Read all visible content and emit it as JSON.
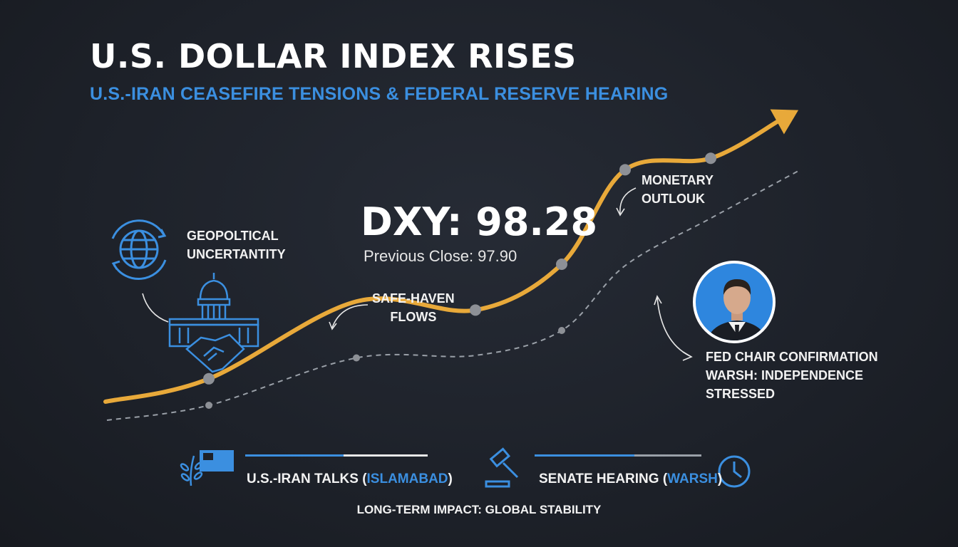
{
  "header": {
    "title": "U.S. DOLLAR INDEX RISES",
    "subtitle": "U.S.-IRAN CEASEFIRE TENSIONS & FEDERAL RESERVE HEARING"
  },
  "readout": {
    "value": "DXY: 98.28",
    "previous": "Previous Close: 97.90"
  },
  "annotations": {
    "geopolitical": [
      "GEOPOLTICAL",
      "UNCERTANTITY"
    ],
    "safe_haven": [
      "SAFE-HAVEN",
      "FLOWS"
    ],
    "monetary": [
      "MONETARY",
      "OUTLOUK"
    ],
    "fed_chair": [
      "FED CHAIR CONFIRMATION",
      "WARSH: INDEPENDENCE",
      "STRESSED"
    ]
  },
  "bottom": {
    "talks_prefix": "U.S.-IRAN TALKS (",
    "talks_highlight": "ISLAMABAD",
    "talks_suffix": ")",
    "hearing_prefix": "SENATE HEARING (",
    "hearing_highlight": "WARSH",
    "hearing_suffix": ")",
    "footer": "LONG-TERM IMPACT: GLOBAL STABILITY"
  },
  "icons": {
    "globe": "globe-icon",
    "capitol": "capitol-icon",
    "handshake": "handshake-icon",
    "microphone": "microphone-icon",
    "olive_branch": "olive-branch-icon",
    "flag": "flag-icon",
    "gavel": "gavel-icon",
    "clock": "clock-icon"
  },
  "colors": {
    "line": "#e8a93a",
    "trend": "#9aa0a8",
    "accent": "#3b8fe0",
    "marker": "#8d9096"
  },
  "chart_data": {
    "type": "line",
    "series": [
      {
        "values": [
          0.02,
          0.1,
          0.37,
          0.34,
          0.5,
          0.83,
          0.87,
          1.0
        ]
      },
      {
        "values": [
          0.0,
          0.06,
          0.25,
          0.26,
          0.36,
          0.62,
          0.81,
          1.0
        ]
      }
    ],
    "markers": [
      {
        "series": 0,
        "index": 1
      },
      {
        "series": 0,
        "index": 3
      },
      {
        "series": 0,
        "index": 4
      },
      {
        "series": 0,
        "index": 5
      },
      {
        "series": 0,
        "index": 6
      },
      {
        "series": 1,
        "index": 1
      },
      {
        "series": 1,
        "index": 2
      },
      {
        "series": 1,
        "index": 4
      }
    ]
  }
}
